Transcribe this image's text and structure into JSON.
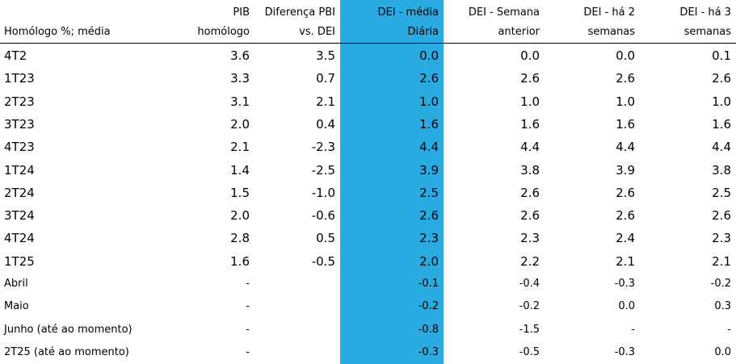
{
  "table": {
    "headers": [
      [
        "",
        "Homólogo %; média"
      ],
      [
        "PIB",
        "homólogo"
      ],
      [
        "Diferença PBI",
        "vs. DEI"
      ],
      [
        "DEI - média",
        "Diária"
      ],
      [
        "DEI - Semana",
        "anterior"
      ],
      [
        "DEI - há 2",
        "semanas"
      ],
      [
        "DEI - há 3",
        "semanas"
      ]
    ],
    "rows": [
      [
        "4T2",
        "3.6",
        "3.5",
        "0.0",
        "0.0",
        "0.0",
        "0.1"
      ],
      [
        "1T23",
        "3.3",
        "0.7",
        "2.6",
        "2.6",
        "2.6",
        "2.6"
      ],
      [
        "2T23",
        "3.1",
        "2.1",
        "1.0",
        "1.0",
        "1.0",
        "1.0"
      ],
      [
        "3T23",
        "2.0",
        "0.4",
        "1.6",
        "1.6",
        "1.6",
        "1.6"
      ],
      [
        "4T23",
        "2.1",
        "-2.3",
        "4.4",
        "4.4",
        "4.4",
        "4.4"
      ],
      [
        "1T24",
        "1.4",
        "-2.5",
        "3.9",
        "3.8",
        "3.9",
        "3.8"
      ],
      [
        "2T24",
        "1.5",
        "-1.0",
        "2.5",
        "2.6",
        "2.6",
        "2.5"
      ],
      [
        "3T24",
        "2.0",
        "-0.6",
        "2.6",
        "2.6",
        "2.6",
        "2.6"
      ],
      [
        "4T24",
        "2.8",
        "0.5",
        "2.3",
        "2.3",
        "2.4",
        "2.3"
      ],
      [
        "1T25",
        "1.6",
        "-0.5",
        "2.0",
        "2.2",
        "2.1",
        "2.1"
      ],
      [
        "Abril",
        "-",
        "",
        "-0.1",
        "-0.4",
        "-0.3",
        "-0.2"
      ],
      [
        "Maio",
        "-",
        "",
        "-0.2",
        "-0.2",
        "0.0",
        "0.3"
      ],
      [
        "Junho (até ao momento)",
        "-",
        "",
        "-0.8",
        "-1.5",
        "-",
        "-"
      ],
      [
        "2T25 (até ao momento)",
        "-",
        "",
        "-0.3",
        "-0.5",
        "-0.3",
        "0.0"
      ]
    ],
    "highlight_color": "#29abe2"
  }
}
